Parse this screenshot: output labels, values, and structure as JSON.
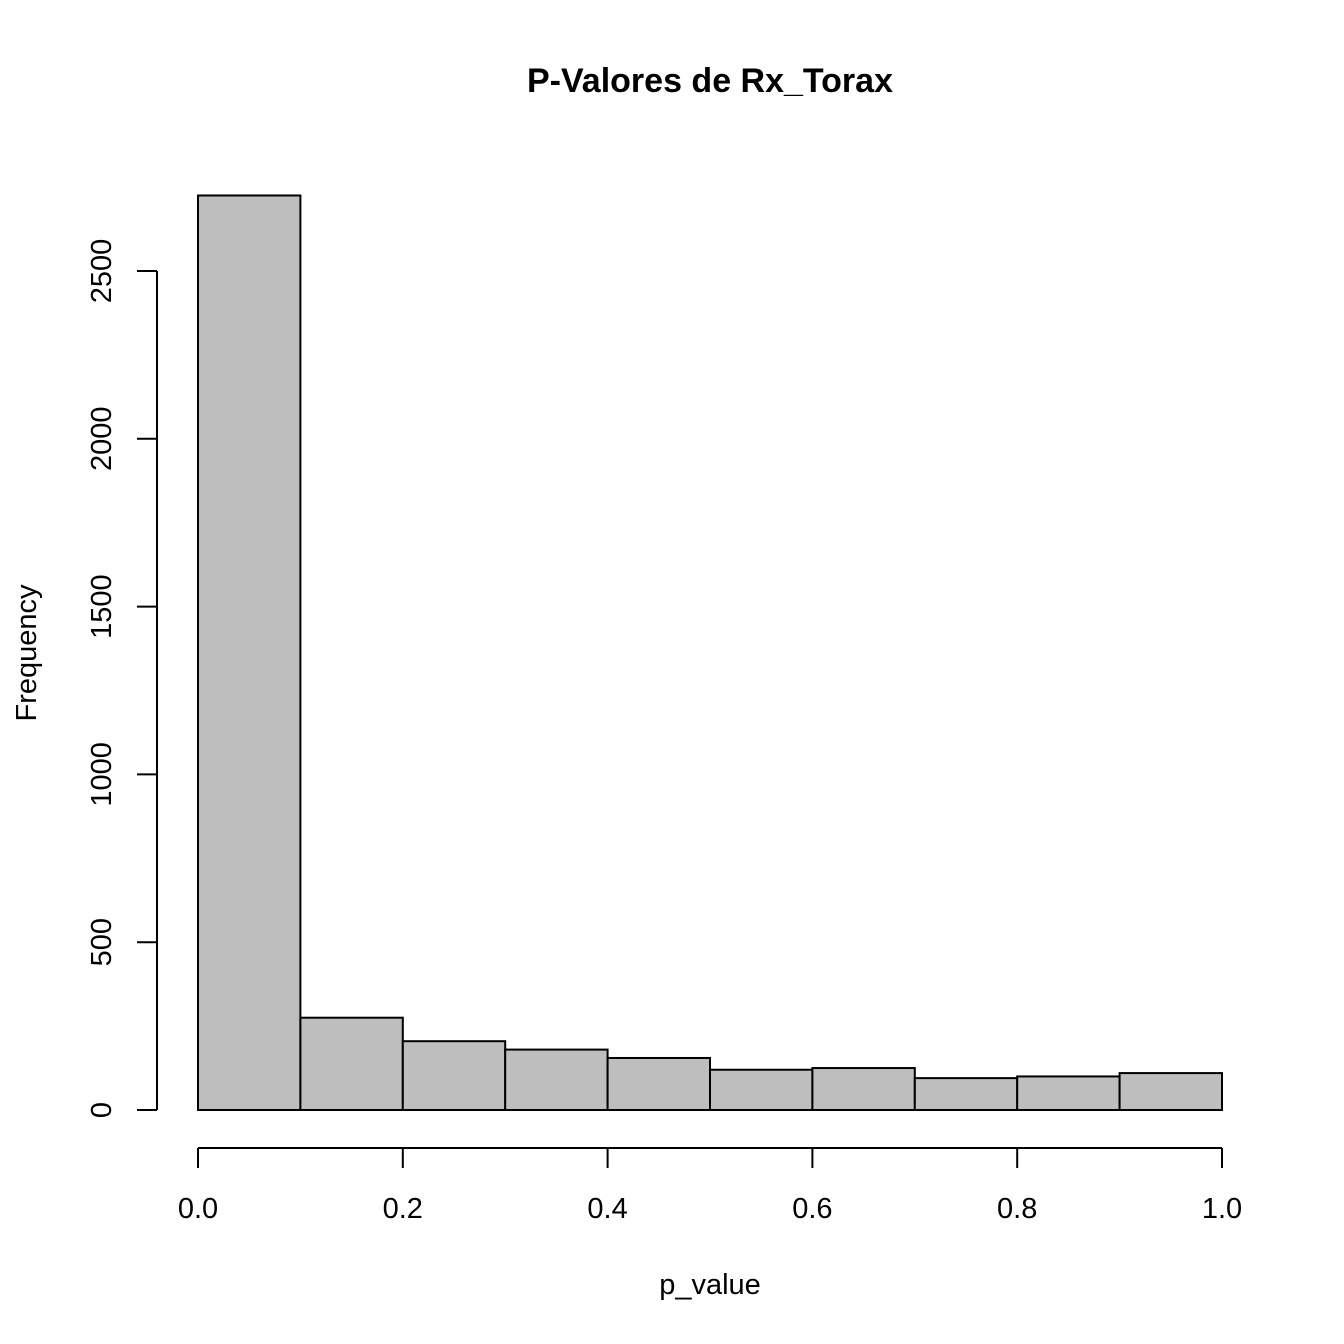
{
  "chart_data": {
    "type": "bar",
    "title": "P-Valores de Rx_Torax",
    "xlabel": "p_value",
    "ylabel": "Frequency",
    "bin_edges": [
      0.0,
      0.1,
      0.2,
      0.3,
      0.4,
      0.5,
      0.6,
      0.7,
      0.8,
      0.9,
      1.0
    ],
    "values": [
      2725,
      275,
      205,
      180,
      155,
      120,
      125,
      95,
      100,
      110
    ],
    "xlim": [
      0.0,
      1.0
    ],
    "ylim": [
      0,
      2725
    ],
    "x_ticks": [
      "0.0",
      "0.2",
      "0.4",
      "0.6",
      "0.8",
      "1.0"
    ],
    "y_ticks": [
      "0",
      "500",
      "1000",
      "1500",
      "2000",
      "2500"
    ],
    "bar_color": "#bebebe",
    "edge_color": "#000000",
    "grid": false
  }
}
